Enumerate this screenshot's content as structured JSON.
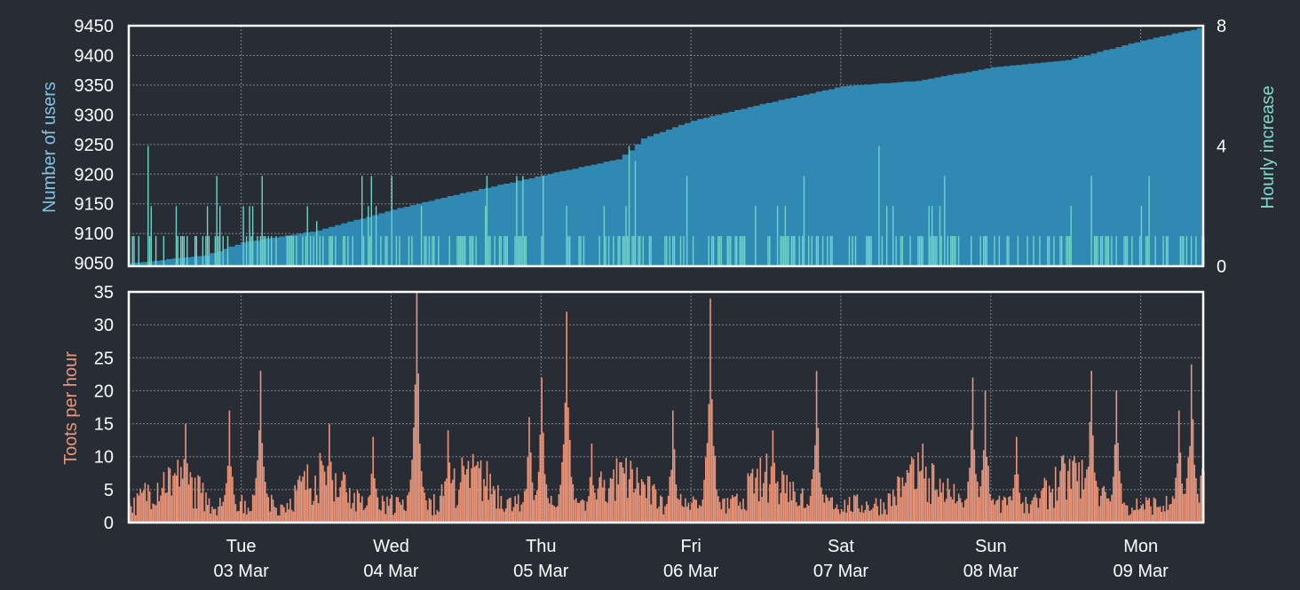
{
  "colors": {
    "background": "#282c35",
    "users_fill": "#2f89b3",
    "hourly_fill": "#6fd3c9",
    "toots_fill": "#e9967a",
    "users_label": "#7fc4e3",
    "hourly_label": "#7fd8cc",
    "toots_label": "#e9967a"
  },
  "chart_data": [
    {
      "type": "area",
      "ylabel": "Number of users",
      "ylabel_right": "Hourly increase",
      "ylim": [
        9045,
        9450
      ],
      "y2lim": [
        0,
        8
      ],
      "yticks": [
        9050,
        9100,
        9150,
        9200,
        9250,
        9300,
        9350,
        9400,
        9450
      ],
      "y2ticks": [
        0,
        4,
        8
      ],
      "grid": true,
      "x_range": [
        "2020-03-02T06:00",
        "2020-03-09T10:00"
      ],
      "series": [
        {
          "values": [
            {
              "x": "2020-03-02T06:00",
              "y": 9050
            },
            {
              "x": "2020-03-02T18:00",
              "y": 9063
            },
            {
              "x": "2020-03-03T00:00",
              "y": 9085
            },
            {
              "x": "2020-03-03T12:00",
              "y": 9105
            },
            {
              "x": "2020-03-04T00:00",
              "y": 9140
            },
            {
              "x": "2020-03-04T12:00",
              "y": 9170
            },
            {
              "x": "2020-03-05T00:00",
              "y": 9198
            },
            {
              "x": "2020-03-05T12:00",
              "y": 9225
            },
            {
              "x": "2020-03-05T14:00",
              "y": 9240
            },
            {
              "x": "2020-03-05T16:00",
              "y": 9260
            },
            {
              "x": "2020-03-06T00:00",
              "y": 9290
            },
            {
              "x": "2020-03-06T12:00",
              "y": 9320
            },
            {
              "x": "2020-03-07T00:00",
              "y": 9348
            },
            {
              "x": "2020-03-07T12:00",
              "y": 9357
            },
            {
              "x": "2020-03-08T00:00",
              "y": 9380
            },
            {
              "x": "2020-03-08T12:00",
              "y": 9392
            },
            {
              "x": "2020-03-09T00:00",
              "y": 9425
            },
            {
              "x": "2020-03-09T10:00",
              "y": 9448
            }
          ]
        },
        {
          "kind": "hourly_increase",
          "peaks": [
            {
              "x": "2020-03-02T09:00",
              "y": 4
            },
            {
              "x": "2020-03-03T12:00",
              "y": 1.5
            },
            {
              "x": "2020-03-04T00:00",
              "y": 3
            },
            {
              "x": "2020-03-05T14:00",
              "y": 4
            },
            {
              "x": "2020-03-05T15:00",
              "y": 3.5
            },
            {
              "x": "2020-03-07T06:00",
              "y": 4
            },
            {
              "x": "2020-03-09T00:00",
              "y": 2
            }
          ]
        }
      ]
    },
    {
      "type": "bar",
      "ylabel": "Toots per hour",
      "ylim": [
        0,
        35
      ],
      "yticks": [
        0,
        5,
        10,
        15,
        20,
        25,
        30,
        35
      ],
      "grid": true,
      "x_range": [
        "2020-03-02T06:00",
        "2020-03-09T10:00"
      ],
      "peaks": [
        {
          "x": "2020-03-02T15:00",
          "y": 15
        },
        {
          "x": "2020-03-02T22:00",
          "y": 17
        },
        {
          "x": "2020-03-03T03:00",
          "y": 23
        },
        {
          "x": "2020-03-03T14:00",
          "y": 15
        },
        {
          "x": "2020-03-03T21:00",
          "y": 13
        },
        {
          "x": "2020-03-04T04:00",
          "y": 35
        },
        {
          "x": "2020-03-04T09:00",
          "y": 14
        },
        {
          "x": "2020-03-04T22:00",
          "y": 16
        },
        {
          "x": "2020-03-05T00:00",
          "y": 22
        },
        {
          "x": "2020-03-05T04:00",
          "y": 32
        },
        {
          "x": "2020-03-05T08:00",
          "y": 12
        },
        {
          "x": "2020-03-05T21:00",
          "y": 17
        },
        {
          "x": "2020-03-06T03:00",
          "y": 34
        },
        {
          "x": "2020-03-06T13:00",
          "y": 14
        },
        {
          "x": "2020-03-06T20:00",
          "y": 23
        },
        {
          "x": "2020-03-07T13:00",
          "y": 12
        },
        {
          "x": "2020-03-07T21:00",
          "y": 22
        },
        {
          "x": "2020-03-07T23:00",
          "y": 20
        },
        {
          "x": "2020-03-08T04:00",
          "y": 13
        },
        {
          "x": "2020-03-08T16:00",
          "y": 23
        },
        {
          "x": "2020-03-08T20:00",
          "y": 20
        },
        {
          "x": "2020-03-09T06:00",
          "y": 17
        },
        {
          "x": "2020-03-09T08:00",
          "y": 24
        }
      ]
    }
  ],
  "x_axis": {
    "ticks": [
      {
        "x": "2020-03-03T00:00",
        "day": "Tue",
        "date": "03 Mar"
      },
      {
        "x": "2020-03-04T00:00",
        "day": "Wed",
        "date": "04 Mar"
      },
      {
        "x": "2020-03-05T00:00",
        "day": "Thu",
        "date": "05 Mar"
      },
      {
        "x": "2020-03-06T00:00",
        "day": "Fri",
        "date": "06 Mar"
      },
      {
        "x": "2020-03-07T00:00",
        "day": "Sat",
        "date": "07 Mar"
      },
      {
        "x": "2020-03-08T00:00",
        "day": "Sun",
        "date": "08 Mar"
      },
      {
        "x": "2020-03-09T00:00",
        "day": "Mon",
        "date": "09 Mar"
      }
    ]
  }
}
